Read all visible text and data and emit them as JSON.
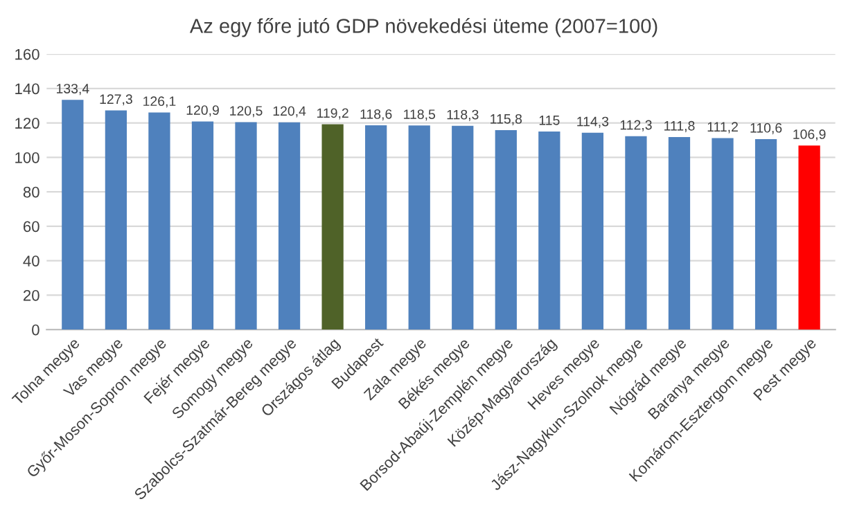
{
  "chart_data": {
    "type": "bar",
    "title": "Az egy főre jutó GDP növekedési üteme (2007=100)",
    "categories": [
      "Tolna megye",
      "Vas megye",
      "Győr-Moson-Sopron megye",
      "Fejér megye",
      "Somogy megye",
      "Szabolcs-Szatmár-Bereg megye",
      "Országos átlag",
      "Budapest",
      "Zala megye",
      "Békés megye",
      "Borsod-Abaúj-Zemplén megye",
      "Közép-Magyarország",
      "Heves megye",
      "Jász-Nagykun-Szolnok megye",
      "Nógrád megye",
      "Baranya megye",
      "Komárom-Esztergom megye",
      "Pest megye"
    ],
    "values": [
      133.4,
      127.3,
      126.1,
      120.9,
      120.5,
      120.4,
      119.2,
      118.6,
      118.5,
      118.3,
      115.8,
      115,
      114.3,
      112.3,
      111.8,
      111.2,
      110.6,
      106.9
    ],
    "value_labels": [
      "133,4",
      "127,3",
      "126,1",
      "120,9",
      "120,5",
      "120,4",
      "119,2",
      "118,6",
      "118,5",
      "118,3",
      "115,8",
      "115",
      "114,3",
      "112,3",
      "111,8",
      "111,2",
      "110,6",
      "106,9"
    ],
    "colors": [
      "#4f81bd",
      "#4f81bd",
      "#4f81bd",
      "#4f81bd",
      "#4f81bd",
      "#4f81bd",
      "#4f6228",
      "#4f81bd",
      "#4f81bd",
      "#4f81bd",
      "#4f81bd",
      "#4f81bd",
      "#4f81bd",
      "#4f81bd",
      "#4f81bd",
      "#4f81bd",
      "#4f81bd",
      "#ff0000"
    ],
    "ylim": [
      0,
      160
    ],
    "yticks": [
      0,
      20,
      40,
      60,
      80,
      100,
      120,
      140,
      160
    ],
    "grid": "y",
    "legend": false
  }
}
